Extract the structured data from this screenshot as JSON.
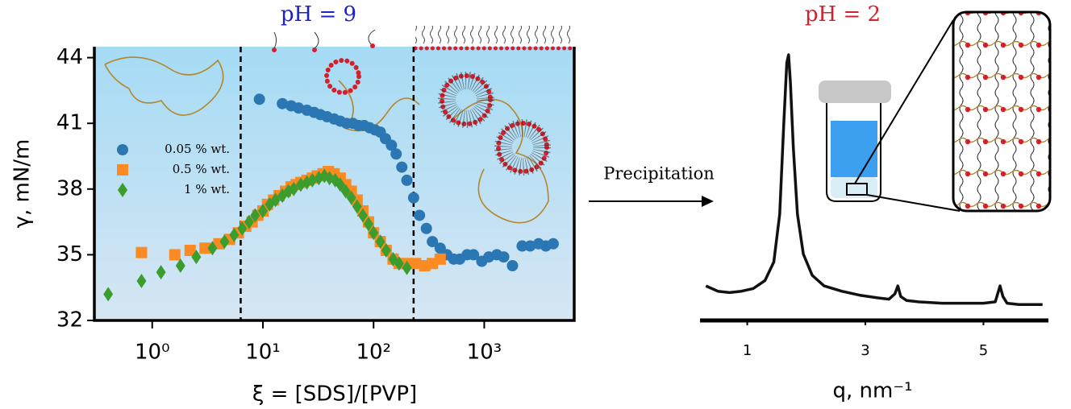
{
  "chart_data": [
    {
      "type": "scatter",
      "annotation": "pH = 9",
      "xlabel": "ξ =  [SDS]/[PVP]",
      "ylabel": "γ, mN/m",
      "xscale": "log",
      "xlim": [
        0.3,
        6500
      ],
      "ylim": [
        32,
        44.5
      ],
      "xticks": [
        {
          "value": 1,
          "label": "10⁰"
        },
        {
          "value": 10,
          "label": "10¹"
        },
        {
          "value": 100,
          "label": "10²"
        },
        {
          "value": 1000,
          "label": "10³"
        }
      ],
      "yticks": [
        32,
        35,
        38,
        41,
        44
      ],
      "vlines": [
        6.3,
        230
      ],
      "legend": "left",
      "series": [
        {
          "name": "0.05 % wt.",
          "color": "#2a77b4",
          "marker": "circle",
          "x": [
            9.3,
            15,
            18,
            21,
            25,
            29,
            33,
            38,
            44,
            50,
            57,
            65,
            73,
            82,
            92,
            103,
            115,
            128,
            145,
            160,
            180,
            200,
            230,
            260,
            300,
            340,
            400,
            460,
            530,
            600,
            700,
            800,
            950,
            1100,
            1300,
            1500,
            1800,
            2200,
            2600,
            3100,
            3600,
            4200
          ],
          "values": [
            42.1,
            41.9,
            41.8,
            41.7,
            41.6,
            41.5,
            41.4,
            41.3,
            41.2,
            41.1,
            41.0,
            41.0,
            40.9,
            40.9,
            40.8,
            40.7,
            40.6,
            40.3,
            40.0,
            39.6,
            39.0,
            38.4,
            37.6,
            36.8,
            36.2,
            35.6,
            35.3,
            35.0,
            34.8,
            34.8,
            35.0,
            35.0,
            34.7,
            34.9,
            35.0,
            34.9,
            34.5,
            35.4,
            35.4,
            35.5,
            35.4,
            35.5
          ]
        },
        {
          "name": "0.5 % wt.",
          "color": "#fb8a22",
          "marker": "square",
          "x": [
            0.8,
            1.6,
            2.2,
            3,
            4,
            5,
            6,
            7,
            8,
            9,
            10,
            11,
            12.5,
            14,
            16,
            18,
            20,
            22,
            25,
            28,
            31,
            35,
            39,
            44,
            50,
            56,
            63,
            71,
            80,
            90,
            100,
            115,
            130,
            150,
            170,
            200,
            240,
            290,
            340,
            400
          ],
          "values": [
            35.1,
            35.0,
            35.2,
            35.3,
            35.5,
            35.7,
            36.0,
            36.3,
            36.5,
            36.8,
            37.0,
            37.3,
            37.5,
            37.7,
            37.9,
            38.1,
            38.2,
            38.3,
            38.4,
            38.5,
            38.6,
            38.7,
            38.8,
            38.7,
            38.5,
            38.2,
            37.9,
            37.5,
            37.0,
            36.5,
            36.0,
            35.6,
            35.2,
            34.8,
            34.6,
            34.6,
            34.6,
            34.5,
            34.6,
            34.8
          ]
        },
        {
          "name": "1 % wt.",
          "color": "#3a9d2e",
          "marker": "diamond",
          "x": [
            0.4,
            0.8,
            1.2,
            1.8,
            2.5,
            3.5,
            4.5,
            5.5,
            6.5,
            7.5,
            8.5,
            10,
            11.5,
            13,
            15,
            17,
            19,
            22,
            25,
            28,
            32,
            36,
            40,
            45,
            50,
            56,
            63,
            71,
            80,
            90,
            100,
            115,
            130,
            150,
            170,
            200
          ],
          "values": [
            33.2,
            33.8,
            34.2,
            34.5,
            34.9,
            35.3,
            35.6,
            35.9,
            36.2,
            36.5,
            36.8,
            37.0,
            37.3,
            37.5,
            37.7,
            37.9,
            38.0,
            38.2,
            38.3,
            38.4,
            38.5,
            38.6,
            38.5,
            38.4,
            38.2,
            37.9,
            37.6,
            37.2,
            36.8,
            36.4,
            36.0,
            35.6,
            35.2,
            34.8,
            34.6,
            34.4
          ]
        }
      ]
    },
    {
      "type": "line",
      "annotation": "pH = 2",
      "arrow_label": "Precipitation",
      "xlabel": "q, nm⁻¹",
      "xlim": [
        0.2,
        6.1
      ],
      "ylim": [
        0,
        100
      ],
      "xticks": [
        1,
        3,
        5
      ],
      "series": [
        {
          "color": "#111111",
          "x": [
            0.3,
            0.5,
            0.7,
            0.9,
            1.1,
            1.3,
            1.45,
            1.55,
            1.62,
            1.67,
            1.7,
            1.73,
            1.78,
            1.85,
            1.95,
            2.1,
            2.3,
            2.6,
            2.9,
            3.2,
            3.4,
            3.5,
            3.55,
            3.6,
            3.7,
            3.9,
            4.3,
            4.7,
            5.0,
            5.2,
            5.28,
            5.33,
            5.4,
            5.6,
            6.0
          ],
          "values": [
            13,
            11,
            10.5,
            11,
            12,
            15,
            22,
            40,
            75,
            97,
            100,
            90,
            65,
            40,
            25,
            17,
            13,
            11,
            9.5,
            8.5,
            8,
            10,
            13,
            9,
            7.5,
            7,
            6.5,
            6.5,
            6.5,
            7,
            13,
            9,
            6.5,
            6,
            6
          ]
        }
      ]
    }
  ]
}
